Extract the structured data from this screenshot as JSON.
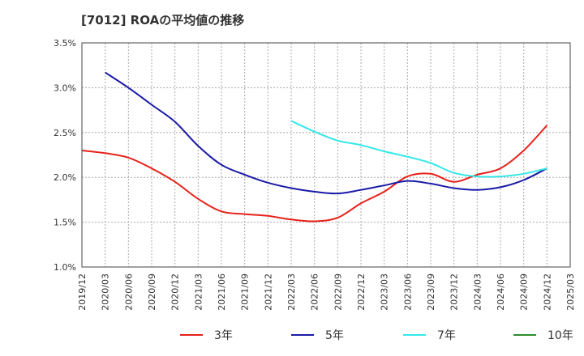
{
  "chart_data": {
    "type": "line",
    "title": "[7012]  ROAの平均値の推移",
    "xlabel": "",
    "ylabel": "",
    "x": [
      "2019/12",
      "2020/03",
      "2020/06",
      "2020/09",
      "2020/12",
      "2021/03",
      "2021/06",
      "2021/09",
      "2021/12",
      "2022/03",
      "2022/06",
      "2022/09",
      "2022/12",
      "2023/03",
      "2023/06",
      "2023/09",
      "2023/12",
      "2024/03",
      "2024/06",
      "2024/09",
      "2024/12",
      "2025/03"
    ],
    "ylim": [
      1.0,
      3.5
    ],
    "yticks": [
      "1.0%",
      "1.5%",
      "2.0%",
      "2.5%",
      "3.0%",
      "3.5%"
    ],
    "grid": true,
    "legend_position": "bottom",
    "series": [
      {
        "name": "3年",
        "color": "#e8201a",
        "values": [
          2.3,
          2.27,
          2.22,
          2.1,
          1.95,
          1.76,
          1.62,
          1.59,
          1.57,
          1.53,
          1.51,
          1.55,
          1.71,
          1.84,
          2.01,
          2.04,
          1.95,
          2.03,
          2.1,
          2.3,
          2.58,
          null
        ]
      },
      {
        "name": "5年",
        "color": "#1a1aa8",
        "values": [
          null,
          3.17,
          3.0,
          2.81,
          2.62,
          2.35,
          2.14,
          2.03,
          1.94,
          1.88,
          1.84,
          1.82,
          1.86,
          1.91,
          1.96,
          1.93,
          1.88,
          1.86,
          1.89,
          1.97,
          2.1,
          null
        ]
      },
      {
        "name": "7年",
        "color": "#33e8e8",
        "values": [
          null,
          null,
          null,
          null,
          null,
          null,
          null,
          null,
          null,
          2.63,
          2.51,
          2.41,
          2.36,
          2.29,
          2.23,
          2.16,
          2.05,
          2.01,
          2.01,
          2.04,
          2.1,
          null
        ]
      },
      {
        "name": "10年",
        "color": "#2a8a2a",
        "values": [
          null,
          null,
          null,
          null,
          null,
          null,
          null,
          null,
          null,
          null,
          null,
          null,
          null,
          null,
          null,
          null,
          null,
          null,
          null,
          null,
          null,
          null
        ]
      }
    ]
  }
}
